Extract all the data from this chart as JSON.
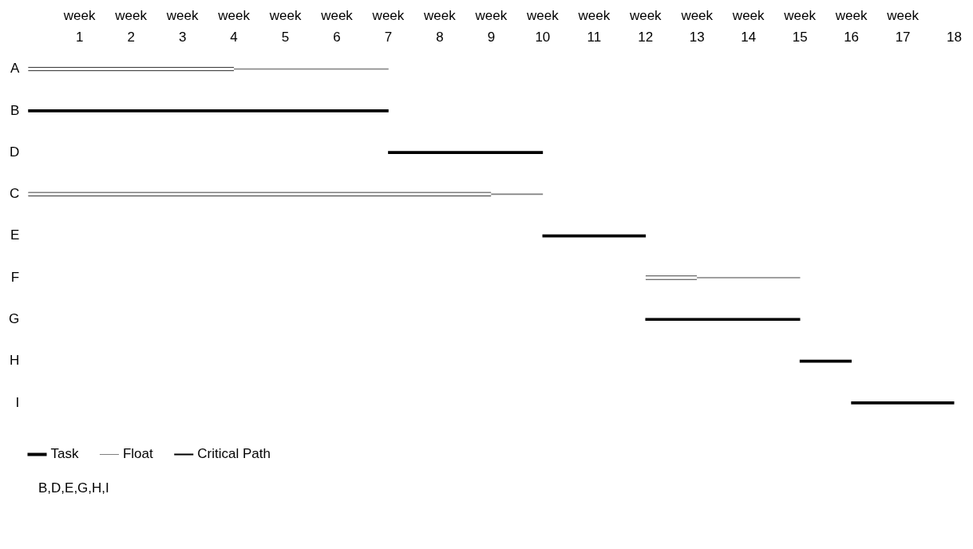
{
  "chart_data": {
    "type": "bar",
    "orientation": "horizontal",
    "categories": [
      "A",
      "B",
      "D",
      "C",
      "E",
      "F",
      "G",
      "H",
      "I"
    ],
    "series": [
      {
        "name": "Task",
        "color": "#000000",
        "base": [
          0,
          null,
          null,
          0,
          null,
          12,
          null,
          null,
          null
        ],
        "values": [
          4,
          null,
          null,
          9,
          null,
          1,
          null,
          null,
          null
        ]
      },
      {
        "name": "Float",
        "color": "#808080",
        "base": [
          4,
          null,
          null,
          9,
          null,
          13,
          null,
          null,
          null
        ],
        "values": [
          3,
          null,
          null,
          1,
          null,
          2,
          null,
          null,
          null
        ]
      },
      {
        "name": "Critical Path",
        "color": "#000000",
        "base": [
          null,
          0,
          7,
          null,
          10,
          null,
          12,
          15,
          16
        ],
        "values": [
          null,
          7,
          3,
          null,
          2,
          null,
          3,
          1,
          2
        ]
      }
    ],
    "xlim": [
      0,
      18
    ],
    "xticks": [
      1,
      2,
      3,
      4,
      5,
      6,
      7,
      8,
      9,
      10,
      11,
      12,
      13,
      14,
      15,
      16,
      17,
      18
    ],
    "xlabel": "week",
    "grid": false,
    "legend": "bottom left",
    "annotations": [
      "B,D,E,G,H,I"
    ]
  }
}
